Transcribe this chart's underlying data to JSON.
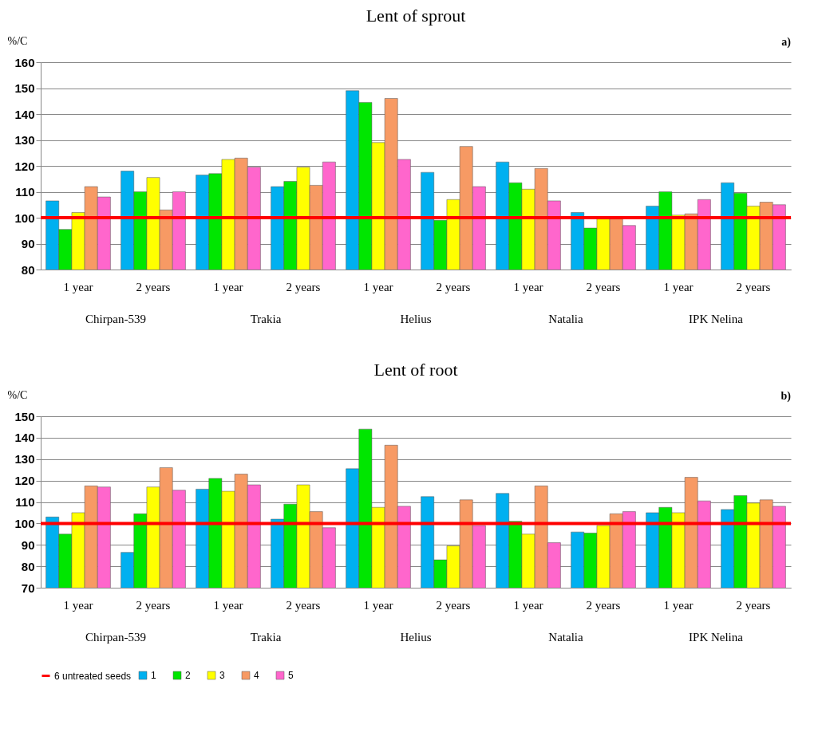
{
  "chart_data": [
    {
      "type": "bar",
      "title": "Lent of sprout",
      "ylabel": "%/C",
      "categories": [
        "1 year",
        "2 years",
        "1 year",
        "2 years",
        "1 year",
        "2 years",
        "1 year",
        "2 years",
        "1 year",
        "2 years"
      ],
      "series": [
        {
          "color": "#00b0f0",
          "values": [
            106.5,
            118,
            116.5,
            112,
            149,
            117.5,
            121.5,
            102,
            104.5,
            113.5
          ]
        },
        {
          "color": "#00e600",
          "values": [
            95.5,
            110,
            117,
            114,
            144.5,
            99,
            113.5,
            96,
            110,
            109.5
          ]
        },
        {
          "color": "#ffff00",
          "values": [
            102,
            115.5,
            122.5,
            119.5,
            129,
            107,
            111,
            99.5,
            101,
            104.5
          ]
        },
        {
          "color": "#f79a64",
          "values": [
            112,
            103,
            123,
            112.5,
            146,
            127.5,
            119,
            99.5,
            101.5,
            106
          ]
        },
        {
          "color": "#ff66cc",
          "values": [
            108,
            110,
            119.5,
            121.5,
            122.5,
            112,
            106.5,
            97,
            107,
            105
          ]
        }
      ],
      "ylim": [
        80,
        160
      ],
      "yticks": [
        80,
        90,
        100,
        110,
        120,
        130,
        140,
        150,
        160
      ],
      "grid": "y",
      "ref_lines": [
        {
          "axis": "y",
          "value": 100,
          "color": "#ff0000"
        }
      ],
      "annotations": [
        "a)",
        "Chirpan-539",
        "Trakia",
        "Helius",
        "Natalia",
        "IPK Nelina"
      ]
    },
    {
      "type": "bar",
      "title": "Lent of root",
      "ylabel": "%/C",
      "categories": [
        "1 year",
        "2 years",
        "1 year",
        "2 years",
        "1 year",
        "2 years",
        "1 year",
        "2 years",
        "1 year",
        "2 years"
      ],
      "series": [
        {
          "name": "1",
          "color": "#00b0f0",
          "values": [
            103,
            86.5,
            116,
            102,
            125.5,
            112.5,
            114,
            96,
            105,
            106.5
          ]
        },
        {
          "name": "2",
          "color": "#00e600",
          "values": [
            95,
            104.5,
            121,
            109,
            144,
            83,
            101,
            95.5,
            107.5,
            113
          ]
        },
        {
          "name": "3",
          "color": "#ffff00",
          "values": [
            105,
            117,
            115,
            118,
            107.5,
            89.5,
            95,
            99,
            105,
            109.5
          ]
        },
        {
          "name": "4",
          "color": "#f79a64",
          "values": [
            117.5,
            126,
            123,
            105.5,
            136.5,
            111,
            117.5,
            104.5,
            121.5,
            111
          ]
        },
        {
          "name": "5",
          "color": "#ff66cc",
          "values": [
            117,
            115.5,
            118,
            98,
            108,
            99,
            91,
            105.5,
            110.5,
            108
          ]
        }
      ],
      "ylim": [
        70,
        150
      ],
      "yticks": [
        70,
        80,
        90,
        100,
        110,
        120,
        130,
        140,
        150
      ],
      "grid": "y",
      "legend": "bottom",
      "ref_lines": [
        {
          "axis": "y",
          "value": 100,
          "label": "6 untreated seeds",
          "color": "#ff0000"
        }
      ],
      "annotations": [
        "b)",
        "Chirpan-539",
        "Trakia",
        "Helius",
        "Natalia",
        "IPK Nelina"
      ]
    }
  ]
}
